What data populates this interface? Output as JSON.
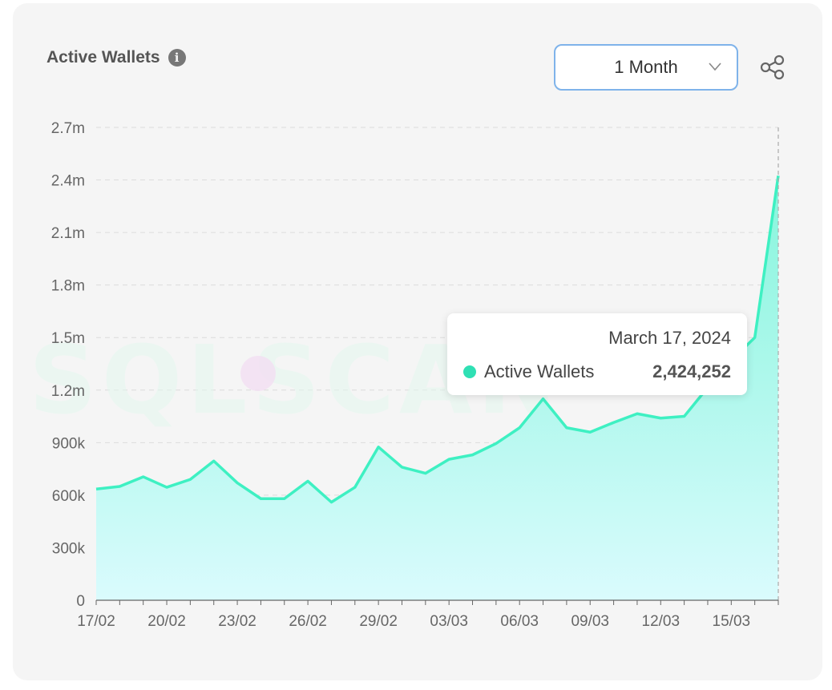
{
  "title": "Active Wallets",
  "info_icon": "info-icon",
  "range_select": {
    "selected": "1 Month"
  },
  "share_icon": "share-icon",
  "watermark": "SQLSCAN",
  "tooltip": {
    "date": "March 17, 2024",
    "series_name": "Active Wallets",
    "value": "2,424,252"
  },
  "colors": {
    "line": "#3ef0c2",
    "area_top": "#86f5dc",
    "area_bottom": "#dafbfd",
    "dot": "#2fe0b4"
  },
  "chart_data": {
    "type": "area",
    "title": "Active Wallets",
    "xlabel": "",
    "ylabel": "",
    "ylim": [
      0,
      2700000
    ],
    "yticks": [
      0,
      300000,
      600000,
      900000,
      1200000,
      1500000,
      1800000,
      2100000,
      2400000,
      2700000
    ],
    "ytick_labels": [
      "0",
      "300k",
      "600k",
      "900k",
      "1.2m",
      "1.5m",
      "1.8m",
      "2.1m",
      "2.4m",
      "2.7m"
    ],
    "xtick_labels": [
      "17/02",
      "20/02",
      "23/02",
      "26/02",
      "29/02",
      "03/03",
      "06/03",
      "09/03",
      "12/03",
      "15/03"
    ],
    "x": [
      "17/02",
      "18/02",
      "19/02",
      "20/02",
      "21/02",
      "22/02",
      "23/02",
      "24/02",
      "25/02",
      "26/02",
      "27/02",
      "28/02",
      "29/02",
      "01/03",
      "02/03",
      "03/03",
      "04/03",
      "05/03",
      "06/03",
      "07/03",
      "08/03",
      "09/03",
      "10/03",
      "11/03",
      "12/03",
      "13/03",
      "14/03",
      "15/03",
      "16/03",
      "17/03"
    ],
    "series": [
      {
        "name": "Active Wallets",
        "values": [
          635000,
          650000,
          705000,
          645000,
          690000,
          795000,
          670000,
          580000,
          580000,
          680000,
          560000,
          645000,
          875000,
          760000,
          725000,
          805000,
          830000,
          895000,
          985000,
          1150000,
          985000,
          960000,
          1015000,
          1065000,
          1040000,
          1050000,
          1215000,
          1370000,
          1500000,
          2424252
        ]
      }
    ],
    "grid": true,
    "legend": "none"
  }
}
